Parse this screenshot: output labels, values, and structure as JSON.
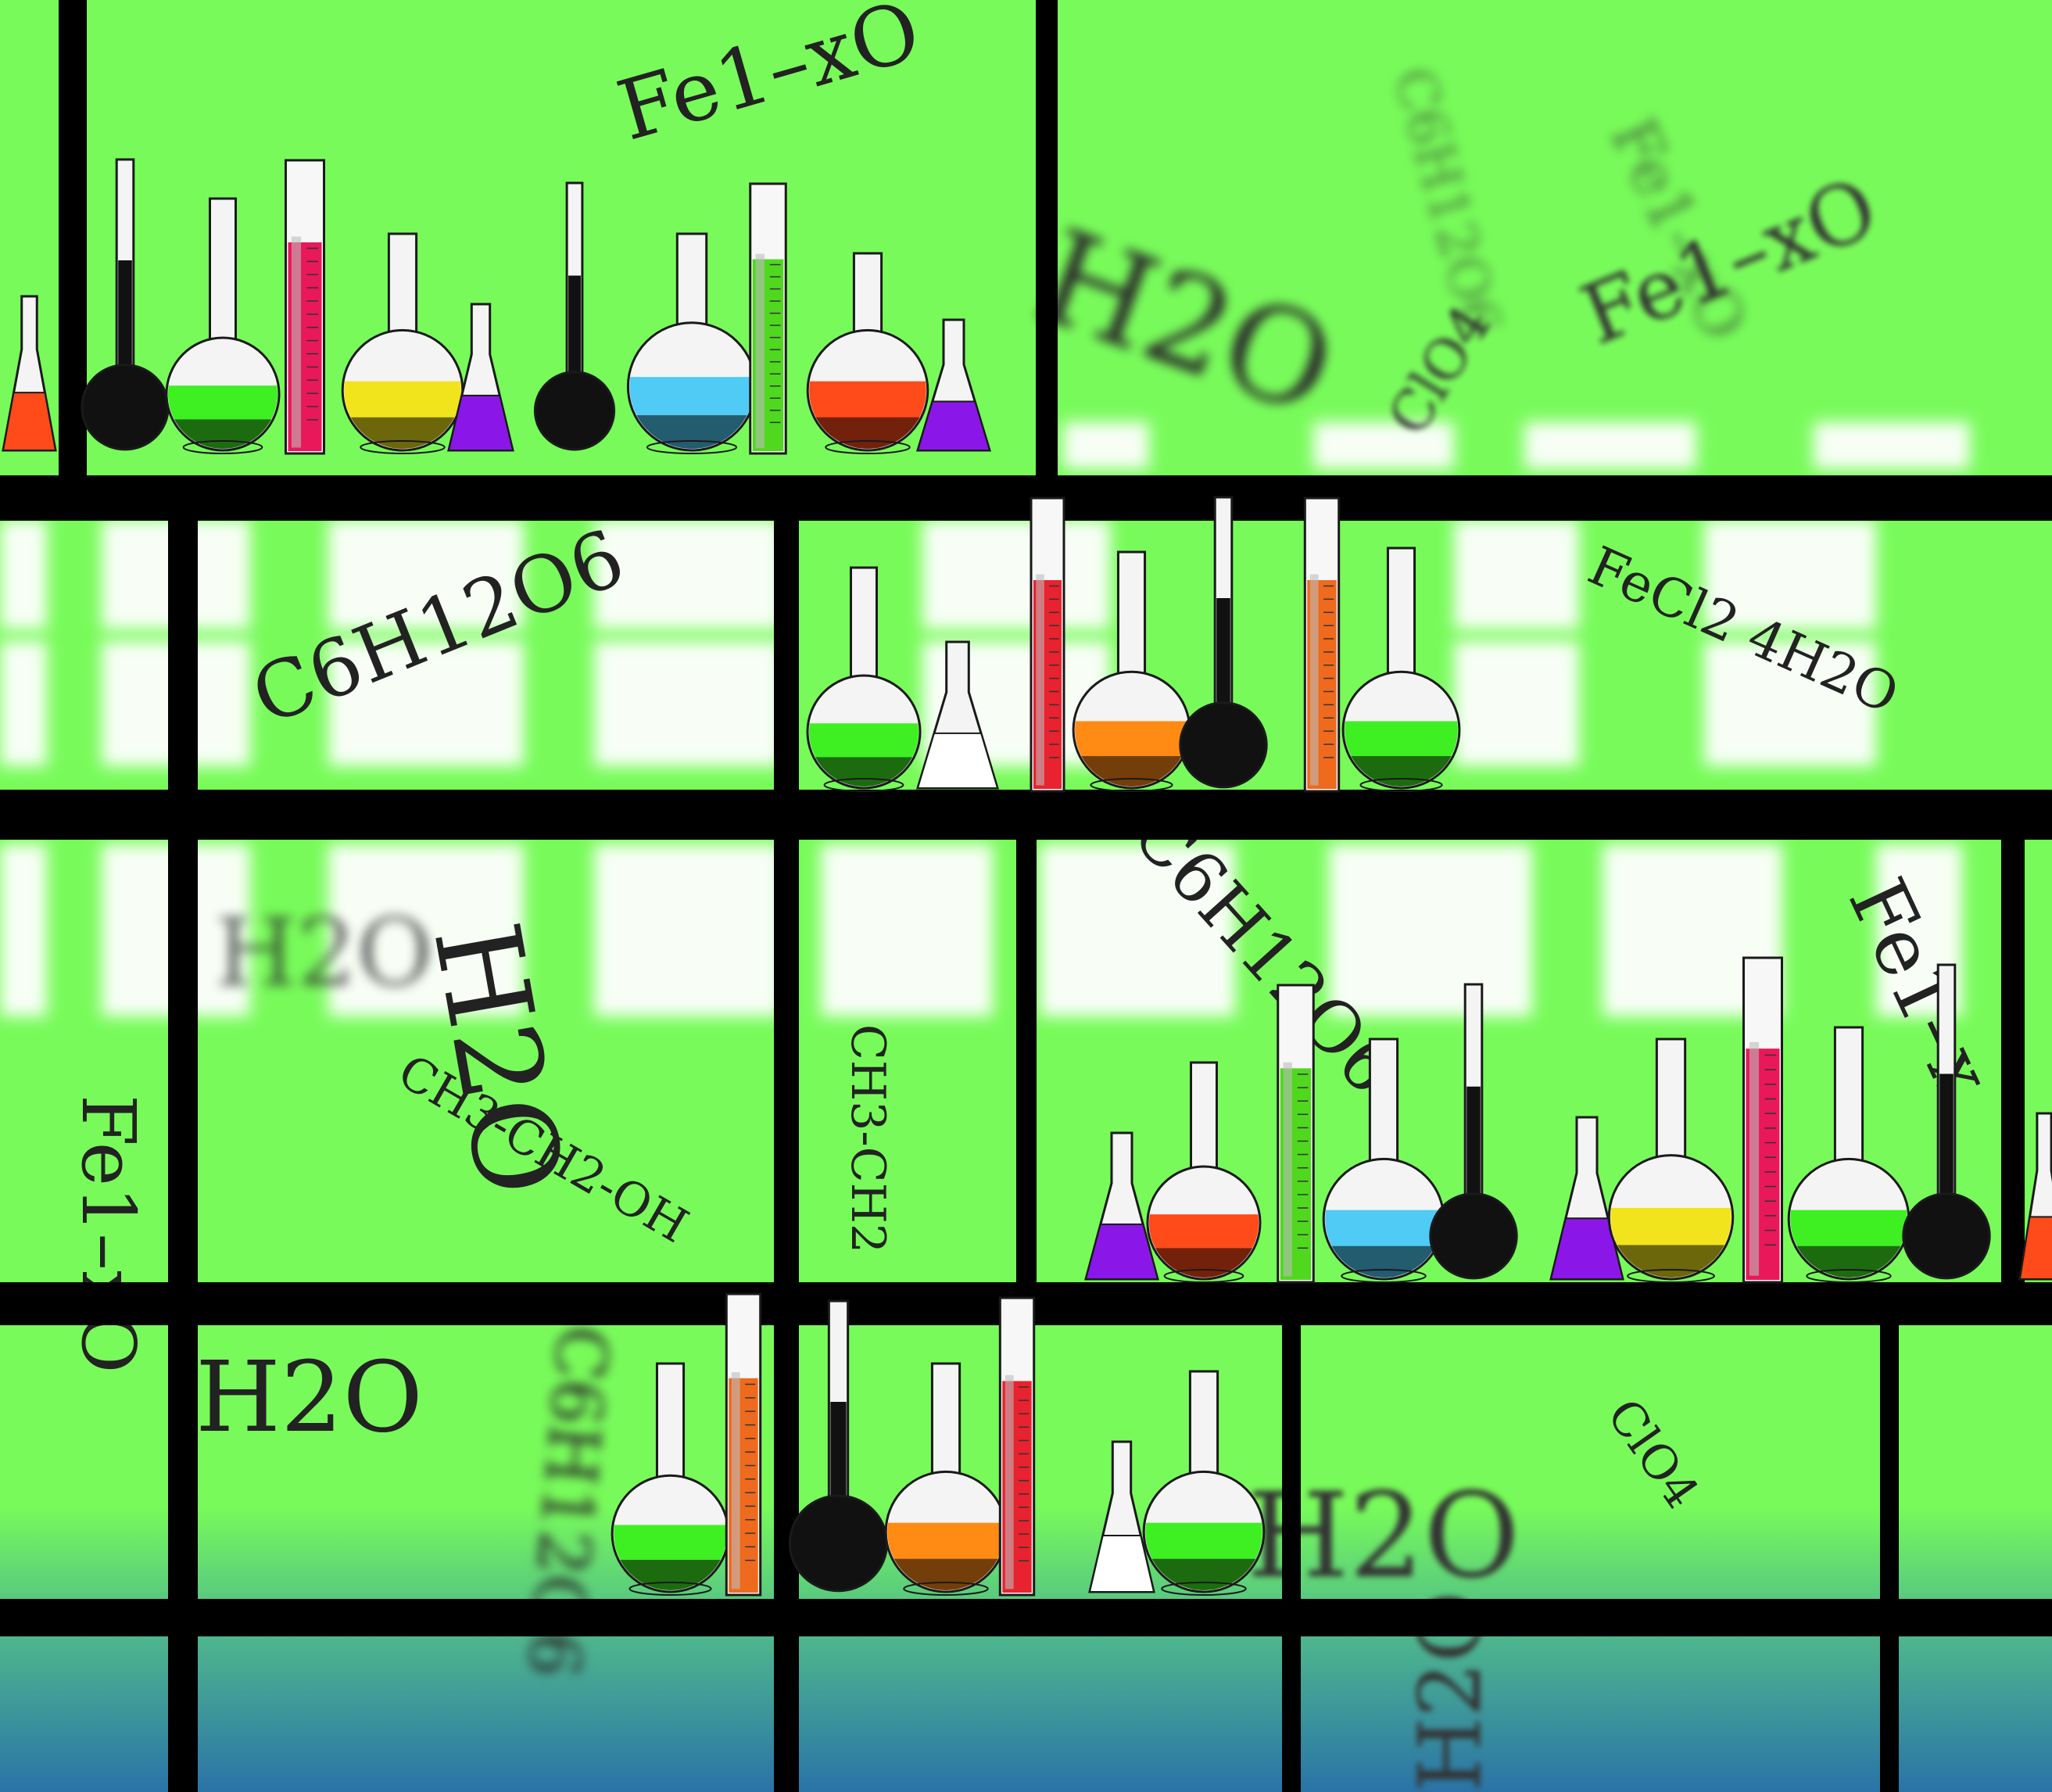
{
  "scene": {
    "subject": "laboratory glassware on shelves",
    "colors": {
      "background": "#78fb5a",
      "bottom_gradient": "#2a73a8",
      "shelf": "#000000",
      "window": "#ffffff"
    }
  },
  "formulas": [
    {
      "id": "fe1xo-top",
      "text": "Fe1–xO"
    },
    {
      "id": "fe1xo-right-blur",
      "text": "Fe1–xO"
    },
    {
      "id": "h2o-top-blur",
      "text": "H2O"
    },
    {
      "id": "clo4-top-blur",
      "text": "ClO4"
    },
    {
      "id": "c6h12o6-left",
      "text": "C6H12O6"
    },
    {
      "id": "fecl2",
      "text": "FeCl2 4H2O"
    },
    {
      "id": "h2o-mid-blur",
      "text": "H2O"
    },
    {
      "id": "h2o-mid-rot",
      "text": "H2O"
    },
    {
      "id": "ethanol-diag",
      "text": "CH3-CH2-OH"
    },
    {
      "id": "ethanol-vert",
      "text": "CH3-CH2"
    },
    {
      "id": "c6h12o6-mid",
      "text": "C6H12O6"
    },
    {
      "id": "fe1xo-right",
      "text": "Fe1–x"
    },
    {
      "id": "fe1xo-left-vert",
      "text": "Fe1–xO"
    },
    {
      "id": "h2o-bottom",
      "text": "H2O"
    },
    {
      "id": "clo4-bottom",
      "text": "ClO4"
    },
    {
      "id": "h2o-bottom-blur",
      "text": "H2O"
    },
    {
      "id": "c6h12o6-bottom-blur",
      "text": "C6H12O6"
    },
    {
      "id": "h2o-vert-blur",
      "text": "H2O"
    }
  ],
  "glassware": [
    {
      "id": "shelf1-erlen-left",
      "type": "erlenmeyer",
      "liquid": "#ff4a1a"
    },
    {
      "id": "shelf1-volumetric-dark",
      "type": "volumetric",
      "liquid": "#111111"
    },
    {
      "id": "shelf1-round-green",
      "type": "round",
      "liquid": "#3ef022"
    },
    {
      "id": "shelf1-cylinder-pink",
      "type": "cylinder",
      "liquid": "#e8185a"
    },
    {
      "id": "shelf1-round-yellow",
      "type": "round",
      "liquid": "#f2e41c"
    },
    {
      "id": "shelf1-erlen-purple",
      "type": "erlenmeyer",
      "liquid": "#8a17e8"
    },
    {
      "id": "shelf1-volumetric-olive",
      "type": "volumetric",
      "liquid": "#111111"
    },
    {
      "id": "shelf1-round-blue",
      "type": "round",
      "liquid": "#4fcbf5"
    },
    {
      "id": "shelf1-cylinder-green",
      "type": "cylinder",
      "liquid": "#4fd81e"
    },
    {
      "id": "shelf1-round-orange",
      "type": "round",
      "liquid": "#ff4a1a"
    },
    {
      "id": "shelf1-erlen-purple2",
      "type": "erlenmeyer",
      "liquid": "#8a17e8"
    },
    {
      "id": "shelf2-round-green",
      "type": "round",
      "liquid": "#3ef022"
    },
    {
      "id": "shelf2-erlen-empty",
      "type": "erlenmeyer",
      "liquid": "#ffffff"
    },
    {
      "id": "shelf2-cylinder-red",
      "type": "cylinder",
      "liquid": "#e8222f"
    },
    {
      "id": "shelf2-round-orange",
      "type": "round",
      "liquid": "#ff8a14"
    },
    {
      "id": "shelf2-volumetric-dark",
      "type": "volumetric",
      "liquid": "#111111"
    },
    {
      "id": "shelf2-cylinder-orange",
      "type": "cylinder",
      "liquid": "#ef6a1c"
    },
    {
      "id": "shelf2-round-green2",
      "type": "round",
      "liquid": "#3ef022"
    },
    {
      "id": "shelf3-erlen-purple",
      "type": "erlenmeyer",
      "liquid": "#8a17e8"
    },
    {
      "id": "shelf3-round-orange",
      "type": "round",
      "liquid": "#ff4a1a"
    },
    {
      "id": "shelf3-cylinder-green",
      "type": "cylinder",
      "liquid": "#4fd81e"
    },
    {
      "id": "shelf3-round-blue",
      "type": "round",
      "liquid": "#4fcbf5"
    },
    {
      "id": "shelf3-volumetric-dark",
      "type": "volumetric",
      "liquid": "#111111"
    },
    {
      "id": "shelf3-erlen-purple2",
      "type": "erlenmeyer",
      "liquid": "#8a17e8"
    },
    {
      "id": "shelf3-round-yellow",
      "type": "round",
      "liquid": "#f2e41c"
    },
    {
      "id": "shelf3-cylinder-pink",
      "type": "cylinder",
      "liquid": "#e8185a"
    },
    {
      "id": "shelf3-round-green",
      "type": "round",
      "liquid": "#3ef022"
    },
    {
      "id": "shelf3-volumetric-dark2",
      "type": "volumetric",
      "liquid": "#111111"
    },
    {
      "id": "shelf3-erlen-orange",
      "type": "erlenmeyer",
      "liquid": "#ff4a1a"
    },
    {
      "id": "shelf4-round-green",
      "type": "round",
      "liquid": "#3ef022"
    },
    {
      "id": "shelf4-cylinder-orange",
      "type": "cylinder",
      "liquid": "#ef6a1c"
    },
    {
      "id": "shelf4-volumetric-red",
      "type": "volumetric",
      "liquid": "#111111"
    },
    {
      "id": "shelf4-round-orange",
      "type": "round",
      "liquid": "#ff8a14"
    },
    {
      "id": "shelf4-cylinder-red",
      "type": "cylinder",
      "liquid": "#e8222f"
    },
    {
      "id": "shelf4-erlen-empty",
      "type": "erlenmeyer",
      "liquid": "#ffffff"
    },
    {
      "id": "shelf4-round-green2",
      "type": "round",
      "liquid": "#3ef022"
    }
  ]
}
